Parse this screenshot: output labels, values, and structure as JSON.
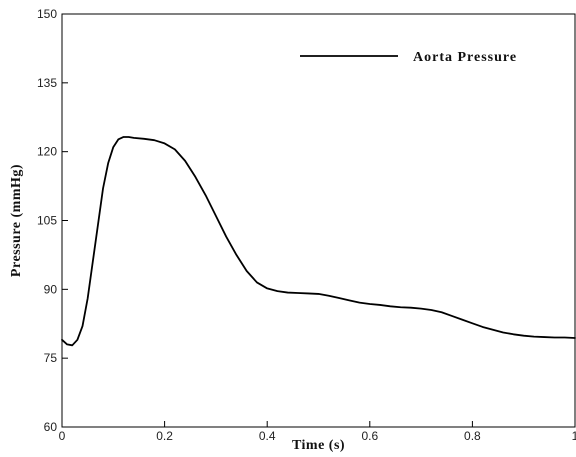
{
  "chart_data": {
    "type": "line",
    "title": "",
    "xlabel": "Time (s)",
    "ylabel": "Pressure (mmHg)",
    "xlim": [
      0,
      1
    ],
    "ylim": [
      60,
      150
    ],
    "xticks": [
      0,
      0.2,
      0.4,
      0.6,
      0.8,
      1
    ],
    "xtick_labels": [
      "0",
      "0.2",
      "0.4",
      "0.6",
      "0.8",
      "1"
    ],
    "yticks": [
      60,
      75,
      90,
      105,
      120,
      135,
      150
    ],
    "ytick_labels": [
      "60",
      "75",
      "90",
      "105",
      "120",
      "135",
      "150"
    ],
    "grid": false,
    "legend": {
      "position": "top-right"
    },
    "series": [
      {
        "name": "Aorta Pressure",
        "color": "#000000",
        "x": [
          0,
          0.01,
          0.02,
          0.03,
          0.04,
          0.05,
          0.06,
          0.07,
          0.08,
          0.09,
          0.1,
          0.11,
          0.12,
          0.13,
          0.14,
          0.16,
          0.18,
          0.2,
          0.22,
          0.24,
          0.26,
          0.28,
          0.3,
          0.32,
          0.34,
          0.36,
          0.38,
          0.4,
          0.42,
          0.44,
          0.46,
          0.48,
          0.5,
          0.52,
          0.54,
          0.56,
          0.58,
          0.6,
          0.62,
          0.64,
          0.66,
          0.68,
          0.7,
          0.72,
          0.74,
          0.76,
          0.78,
          0.8,
          0.82,
          0.84,
          0.86,
          0.88,
          0.9,
          0.92,
          0.94,
          0.96,
          0.98,
          1.0
        ],
        "y": [
          79,
          78,
          77.8,
          79,
          82,
          88,
          96,
          104,
          112,
          117.5,
          121,
          122.7,
          123.2,
          123.2,
          123,
          122.8,
          122.5,
          121.8,
          120.5,
          118,
          114.5,
          110.5,
          106,
          101.5,
          97.5,
          94,
          91.5,
          90.2,
          89.6,
          89.3,
          89.2,
          89.1,
          89.0,
          88.6,
          88.1,
          87.6,
          87.1,
          86.8,
          86.6,
          86.3,
          86.1,
          86.0,
          85.8,
          85.5,
          85.0,
          84.2,
          83.4,
          82.6,
          81.8,
          81.2,
          80.6,
          80.2,
          79.9,
          79.7,
          79.6,
          79.5,
          79.5,
          79.4
        ]
      }
    ]
  }
}
